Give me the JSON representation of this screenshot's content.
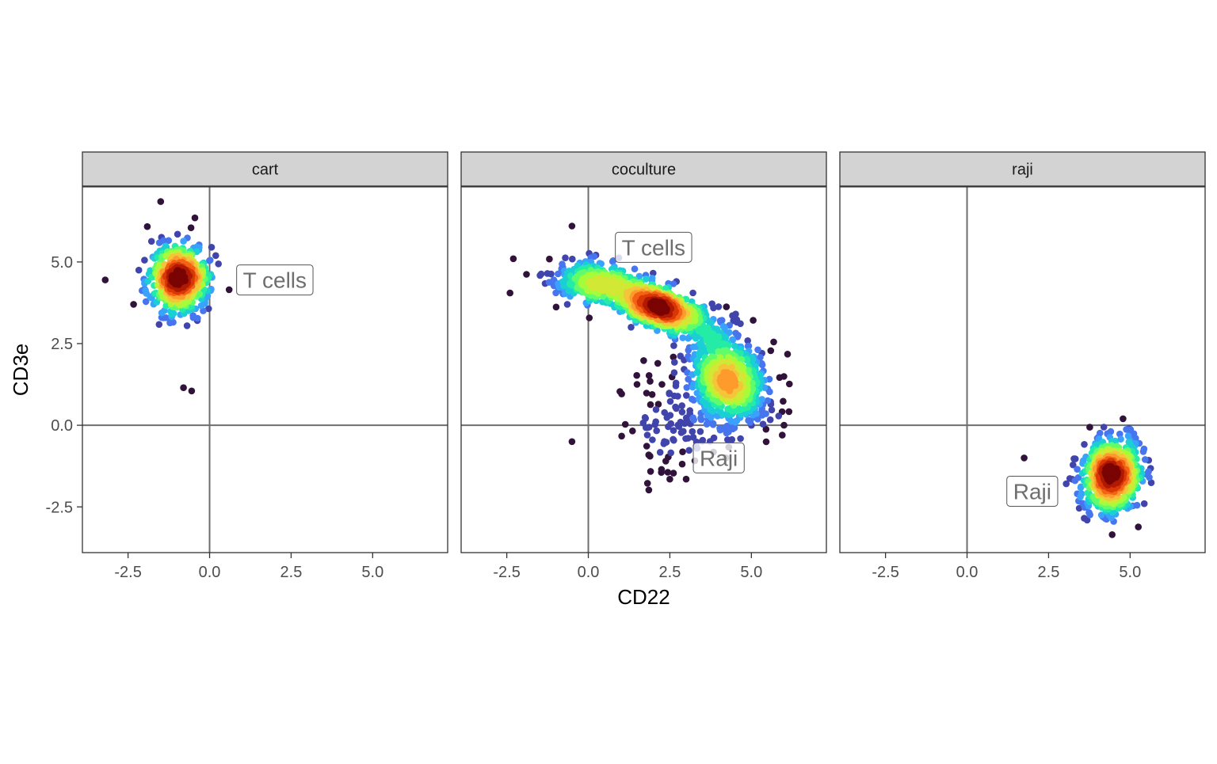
{
  "chart_data": {
    "type": "scatter",
    "xlabel": "CD22",
    "ylabel": "CD3e",
    "xlim": [
      -3.9,
      7.3
    ],
    "ylim": [
      -3.9,
      7.3
    ],
    "x_ticks": [
      -2.5,
      0.0,
      2.5,
      5.0
    ],
    "y_ticks": [
      -2.5,
      0.0,
      2.5,
      5.0
    ],
    "x_tick_labels": [
      "-2.5",
      "0.0",
      "2.5",
      "5.0"
    ],
    "y_tick_labels": [
      "-2.5",
      "0.0",
      "2.5",
      "5.0"
    ],
    "reference_lines": {
      "x": 0,
      "y": 0
    },
    "color_scale": "point density (turbo: dark purple low → blue → green → yellow → dark red high)",
    "palette": [
      "#30123b",
      "#4145ab",
      "#4675ed",
      "#39a2fc",
      "#1bcfd4",
      "#24eca6",
      "#61fc6c",
      "#a4fc3b",
      "#d1e834",
      "#f3c63a",
      "#fe9b2d",
      "#f36315",
      "#d93806",
      "#b11901",
      "#7a0403"
    ],
    "panels": [
      {
        "facet": "cart",
        "clusters": [
          {
            "cx": -0.95,
            "cy": 4.5,
            "sx": 0.45,
            "sy": 0.55,
            "rho": 0.0,
            "n": 520
          }
        ],
        "outliers": [
          [
            -0.8,
            1.15
          ],
          [
            -0.55,
            1.05
          ],
          [
            -1.5,
            6.85
          ],
          [
            -0.45,
            6.35
          ],
          [
            -3.2,
            4.45
          ],
          [
            0.6,
            4.15
          ]
        ],
        "annotations": [
          {
            "text": "T cells",
            "x": 2.0,
            "y": 4.45
          }
        ]
      },
      {
        "facet": "coculture",
        "clusters": [
          {
            "cx": 2.0,
            "cy": 3.7,
            "sx": 0.95,
            "sy": 0.5,
            "rho": -0.75,
            "n": 900
          },
          {
            "cx": -0.05,
            "cy": 4.35,
            "sx": 0.55,
            "sy": 0.3,
            "rho": 0.0,
            "n": 220
          },
          {
            "cx": 4.3,
            "cy": 1.4,
            "sx": 0.6,
            "sy": 0.7,
            "rho": -0.2,
            "n": 700
          },
          {
            "cx": 2.8,
            "cy": 0.2,
            "sx": 0.9,
            "sy": 0.85,
            "rho": 0.0,
            "n": 130
          }
        ],
        "outliers": [
          [
            -0.5,
            6.1
          ],
          [
            -2.3,
            5.1
          ],
          [
            -2.4,
            4.05
          ],
          [
            -0.5,
            -0.5
          ],
          [
            2.5,
            -1.65
          ],
          [
            3.0,
            -1.65
          ],
          [
            4.45,
            3.2
          ],
          [
            6.0,
            0.0
          ]
        ],
        "annotations": [
          {
            "text": "T cells",
            "x": 2.0,
            "y": 5.45
          },
          {
            "text": "Raji",
            "x": 4.0,
            "y": -1.0
          }
        ]
      },
      {
        "facet": "raji",
        "clusters": [
          {
            "cx": 4.45,
            "cy": -1.5,
            "sx": 0.45,
            "sy": 0.55,
            "rho": 0.1,
            "n": 680
          }
        ],
        "outliers": [
          [
            1.75,
            -1.0
          ],
          [
            5.5,
            -1.5
          ],
          [
            4.45,
            -3.35
          ]
        ],
        "annotations": [
          {
            "text": "Raji",
            "x": 2.0,
            "y": -2.02
          }
        ]
      }
    ]
  }
}
